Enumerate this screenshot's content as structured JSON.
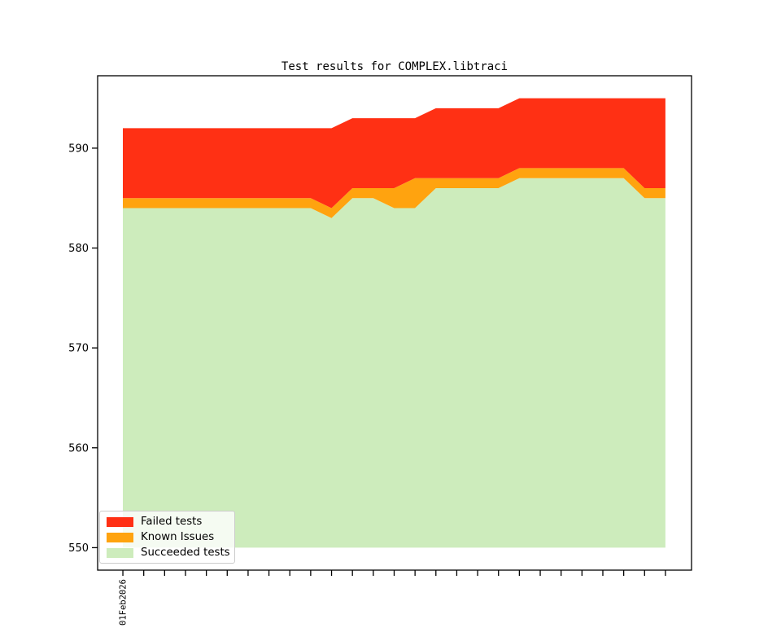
{
  "chart_data": {
    "type": "area",
    "stacked": true,
    "title": "Test results for COMPLEX.libtraci",
    "x": [
      0,
      1,
      2,
      3,
      4,
      5,
      6,
      7,
      8,
      9,
      10,
      11,
      12,
      13,
      14,
      15,
      16,
      17,
      18,
      19,
      20,
      21,
      22,
      23,
      24,
      25,
      26
    ],
    "x_tick_labels": {
      "0": "01Feb2026"
    },
    "x_tick_label_rotation": 90,
    "xlim": [
      -1.21,
      27.25
    ],
    "ylim": [
      547.75,
      597.25
    ],
    "yticks": [
      550,
      560,
      570,
      580,
      590
    ],
    "baseline": 550,
    "grid": false,
    "legend_position": "lower-left",
    "series": [
      {
        "name": "Failed tests",
        "color": "#ff3014",
        "values": [
          7,
          7,
          7,
          7,
          7,
          7,
          7,
          7,
          7,
          7,
          8,
          7,
          7,
          7,
          6,
          7,
          7,
          7,
          7,
          7,
          7,
          7,
          7,
          7,
          7,
          9,
          9
        ]
      },
      {
        "name": "Known Issues",
        "color": "#ffa30f",
        "values": [
          1,
          1,
          1,
          1,
          1,
          1,
          1,
          1,
          1,
          1,
          1,
          1,
          1,
          2,
          3,
          1,
          1,
          1,
          1,
          1,
          1,
          1,
          1,
          1,
          1,
          1,
          1
        ]
      },
      {
        "name": "Succeeded tests",
        "color": "#cdecbc",
        "values": [
          584,
          584,
          584,
          584,
          584,
          584,
          584,
          584,
          584,
          584,
          583,
          585,
          585,
          584,
          584,
          586,
          586,
          586,
          586,
          587,
          587,
          587,
          587,
          587,
          587,
          585,
          585
        ]
      }
    ],
    "axes": {
      "spine_color": "#000000",
      "tick_color": "#000000",
      "tick_label_color": "#000000"
    }
  }
}
